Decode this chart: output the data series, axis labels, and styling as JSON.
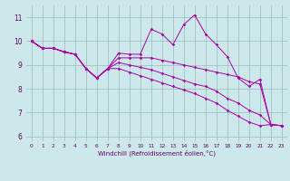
{
  "xlabel": "Windchill (Refroidissement éolien,°C)",
  "background_color": "#cce8ea",
  "line_color": "#aa00aa",
  "grid_color": "#99bbbb",
  "xlim": [
    -0.5,
    23.5
  ],
  "ylim": [
    5.8,
    11.5
  ],
  "yticks": [
    6,
    7,
    8,
    9,
    10,
    11
  ],
  "xticks": [
    0,
    1,
    2,
    3,
    4,
    5,
    6,
    7,
    8,
    9,
    10,
    11,
    12,
    13,
    14,
    15,
    16,
    17,
    18,
    19,
    20,
    21,
    22,
    23
  ],
  "series": [
    [
      10.0,
      9.7,
      9.7,
      9.55,
      9.45,
      8.85,
      8.45,
      8.85,
      9.5,
      9.45,
      9.45,
      10.5,
      10.3,
      9.85,
      10.7,
      11.1,
      10.3,
      9.85,
      9.35,
      8.45,
      8.1,
      8.4,
      6.5,
      6.45
    ],
    [
      10.0,
      9.7,
      9.7,
      9.55,
      9.45,
      8.85,
      8.45,
      8.85,
      9.3,
      9.3,
      9.3,
      9.3,
      9.2,
      9.1,
      9.0,
      8.9,
      8.8,
      8.7,
      8.6,
      8.5,
      8.3,
      8.2,
      6.5,
      6.45
    ],
    [
      10.0,
      9.7,
      9.7,
      9.55,
      9.45,
      8.85,
      8.45,
      8.85,
      9.1,
      9.0,
      8.9,
      8.8,
      8.65,
      8.5,
      8.35,
      8.2,
      8.1,
      7.9,
      7.6,
      7.4,
      7.1,
      6.9,
      6.5,
      6.45
    ],
    [
      10.0,
      9.7,
      9.7,
      9.55,
      9.45,
      8.85,
      8.45,
      8.85,
      8.85,
      8.7,
      8.55,
      8.4,
      8.25,
      8.1,
      7.95,
      7.8,
      7.6,
      7.4,
      7.1,
      6.85,
      6.6,
      6.45,
      6.5,
      6.45
    ]
  ]
}
